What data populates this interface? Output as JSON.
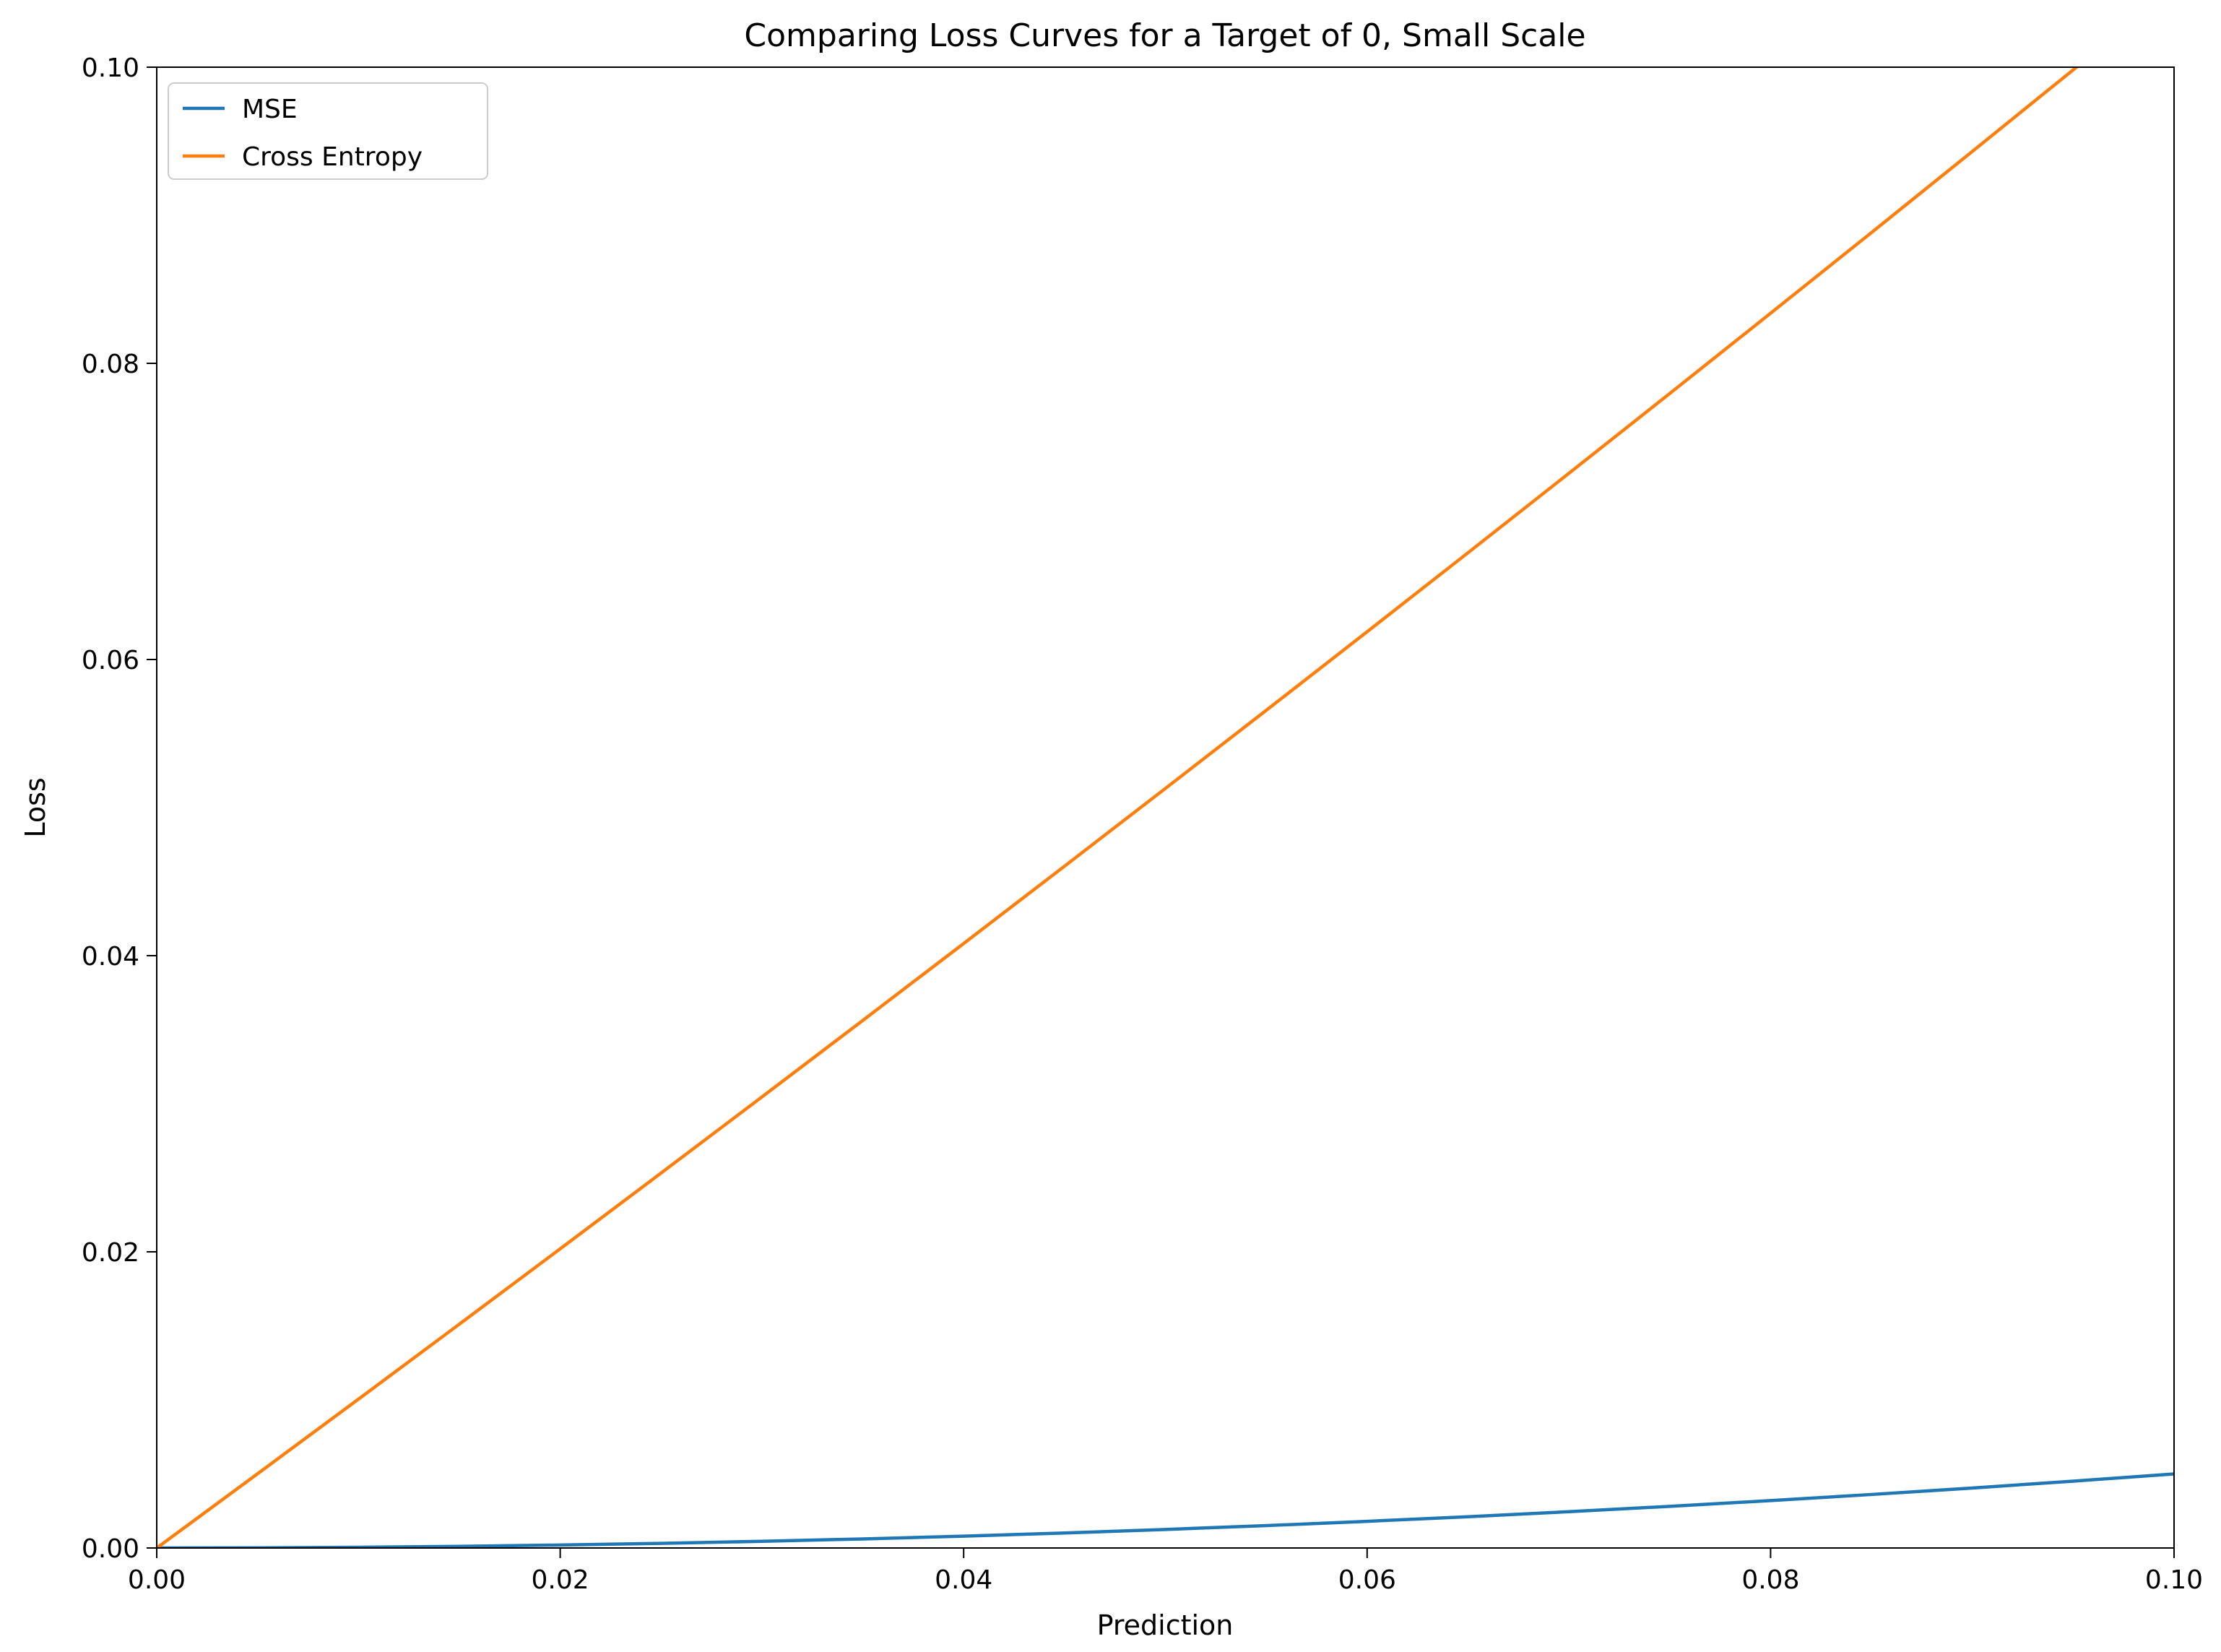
{
  "chart_data": {
    "type": "line",
    "title": "Comparing Loss Curves for a Target of 0, Small Scale",
    "xlabel": "Prediction",
    "ylabel": "Loss",
    "xlim": [
      0,
      0.1
    ],
    "ylim": [
      0,
      0.1
    ],
    "xticks": [
      "0.00",
      "0.02",
      "0.04",
      "0.06",
      "0.08",
      "0.10"
    ],
    "yticks": [
      "0.00",
      "0.02",
      "0.04",
      "0.06",
      "0.08",
      "0.10"
    ],
    "grid": false,
    "legend_position": "top-left",
    "x": [
      0,
      0.005,
      0.01,
      0.015,
      0.02,
      0.025,
      0.03,
      0.035,
      0.04,
      0.045,
      0.05,
      0.055,
      0.06,
      0.065,
      0.07,
      0.075,
      0.08,
      0.085,
      0.09,
      0.095,
      0.1
    ],
    "series": [
      {
        "name": "MSE",
        "color": "#1f77b4",
        "values": [
          0,
          1.25e-05,
          5e-05,
          0.0001125,
          0.0002,
          0.0003125,
          0.00045,
          0.0006125,
          0.0008,
          0.0010125,
          0.00125,
          0.0015125,
          0.0018,
          0.0021125,
          0.00245,
          0.0028125,
          0.0032,
          0.0036125,
          0.00405,
          0.0045125,
          0.005
        ]
      },
      {
        "name": "Cross Entropy",
        "color": "#ff7f0e",
        "values": [
          0,
          0.005013,
          0.01005,
          0.015114,
          0.020203,
          0.025318,
          0.030459,
          0.035627,
          0.040822,
          0.046044,
          0.051293,
          0.05657,
          0.061875,
          0.067209,
          0.072571,
          0.077962,
          0.083382,
          0.088831,
          0.094311,
          0.09982,
          0.10536
        ]
      }
    ]
  }
}
